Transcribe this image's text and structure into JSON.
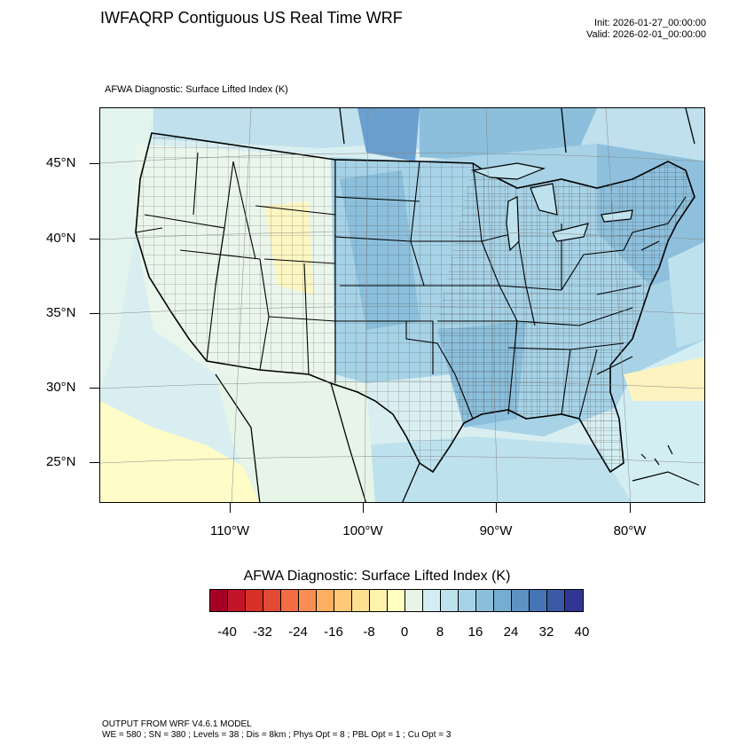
{
  "header": {
    "title": "IWFAQRP Contiguous US Real Time WRF",
    "init": "Init: 2026-01-27_00:00:00",
    "valid": "Valid: 2026-02-01_00:00:00"
  },
  "map": {
    "subtitle": "AFWA Diagnostic: Surface Lifted Index   (K)",
    "lat_labels": [
      "45°N",
      "40°N",
      "35°N",
      "30°N",
      "25°N"
    ],
    "lon_labels": [
      "110°W",
      "100°W",
      "90°W",
      "80°W"
    ]
  },
  "colorbar": {
    "title": "AFWA Diagnostic: Surface Lifted Index  (K)",
    "colors": [
      "#a50026",
      "#c2152b",
      "#d73027",
      "#e34a33",
      "#f46d43",
      "#f98e52",
      "#fdae61",
      "#fec878",
      "#fee090",
      "#fff3ac",
      "#ffffbf",
      "#e6f5e8",
      "#d3eef3",
      "#bde2ee",
      "#a6d2e6",
      "#8cbfdb",
      "#74add1",
      "#5f91c3",
      "#4575b4",
      "#3b5aa5",
      "#313695"
    ],
    "labels": [
      "-40",
      "-32",
      "-24",
      "-16",
      "-8",
      "0",
      "8",
      "16",
      "24",
      "32",
      "40"
    ]
  },
  "footer": {
    "line1": "OUTPUT FROM WRF V4.6.1 MODEL",
    "line2": "WE = 580 ; SN = 380 ; Levels = 38 ; Dis = 8km ; Phys Opt = 8 ; PBL Opt = 1 ; Cu Opt = 3"
  }
}
